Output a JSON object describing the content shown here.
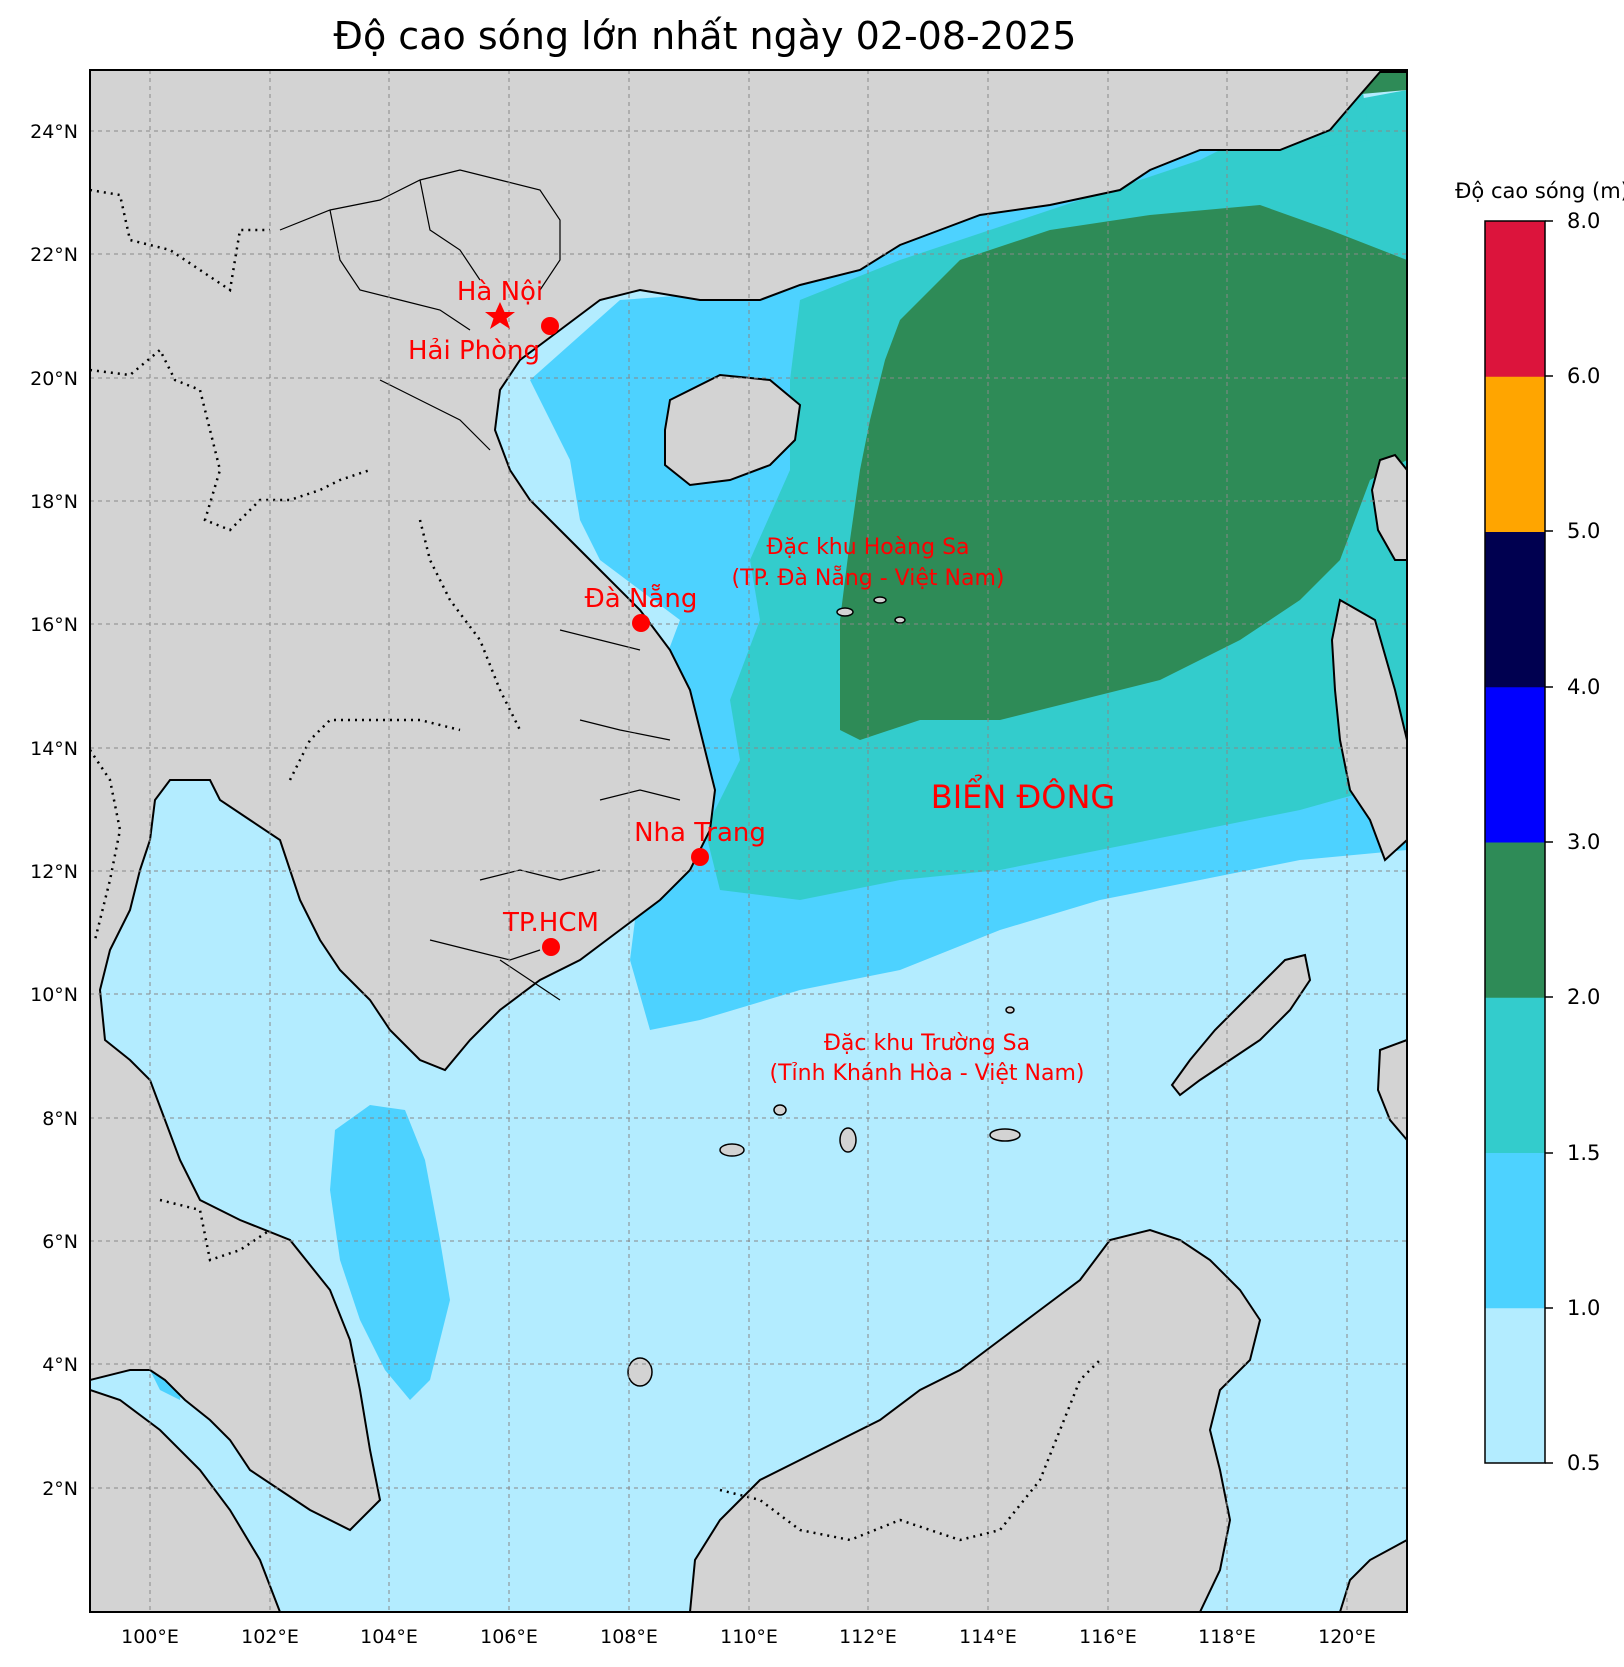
{
  "title": "Độ cao sóng lớn nhất ngày 02-08-2025",
  "map": {
    "lon_range": [
      99,
      121
    ],
    "lat_range": [
      0,
      25
    ],
    "lon_ticks": [
      "100°E",
      "102°E",
      "104°E",
      "106°E",
      "108°E",
      "110°E",
      "112°E",
      "114°E",
      "116°E",
      "118°E",
      "120°E"
    ],
    "lat_ticks": [
      "2°N",
      "4°N",
      "6°N",
      "8°N",
      "10°N",
      "12°N",
      "14°N",
      "16°N",
      "18°N",
      "20°N",
      "22°N",
      "24°N"
    ],
    "land_color": "#d3d3d3",
    "grid": true
  },
  "cities": [
    {
      "name": "Hà Nội",
      "lon": 105.85,
      "lat": 21.03,
      "marker": "star"
    },
    {
      "name": "Hải Phòng",
      "lon": 106.68,
      "lat": 20.86,
      "marker": "circle"
    },
    {
      "name": "Đà Nẵng",
      "lon": 108.22,
      "lat": 16.07,
      "marker": "circle"
    },
    {
      "name": "Nha Trang",
      "lon": 109.19,
      "lat": 12.24,
      "marker": "circle"
    },
    {
      "name": "TP.HCM",
      "lon": 106.7,
      "lat": 10.78,
      "marker": "circle"
    }
  ],
  "labels": {
    "hoang_sa_1": "Đặc khu Hoàng Sa",
    "hoang_sa_2": "(TP. Đà Nẵng - Việt Nam)",
    "truong_sa_1": "Đặc khu Trường Sa",
    "truong_sa_2": "(Tỉnh Khánh Hòa - Việt Nam)",
    "sea": "BIỂN ĐÔNG"
  },
  "colorbar": {
    "title": "Độ cao sóng (m)",
    "bins": [
      {
        "from": "0.5",
        "to": "1.0",
        "color": "#b3ecff"
      },
      {
        "from": "1.0",
        "to": "1.5",
        "color": "#4dd2ff"
      },
      {
        "from": "1.5",
        "to": "2.0",
        "color": "#33cccc"
      },
      {
        "from": "2.0",
        "to": "3.0",
        "color": "#2e8b57"
      },
      {
        "from": "3.0",
        "to": "4.0",
        "color": "#0000ff"
      },
      {
        "from": "4.0",
        "to": "5.0",
        "color": "#000050"
      },
      {
        "from": "5.0",
        "to": "6.0",
        "color": "#ffa500"
      },
      {
        "from": "6.0",
        "to": "8.0",
        "color": "#dc143c"
      }
    ],
    "tick_labels": [
      "0.5",
      "1.0",
      "1.5",
      "2.0",
      "3.0",
      "4.0",
      "5.0",
      "6.0",
      "8.0"
    ]
  }
}
